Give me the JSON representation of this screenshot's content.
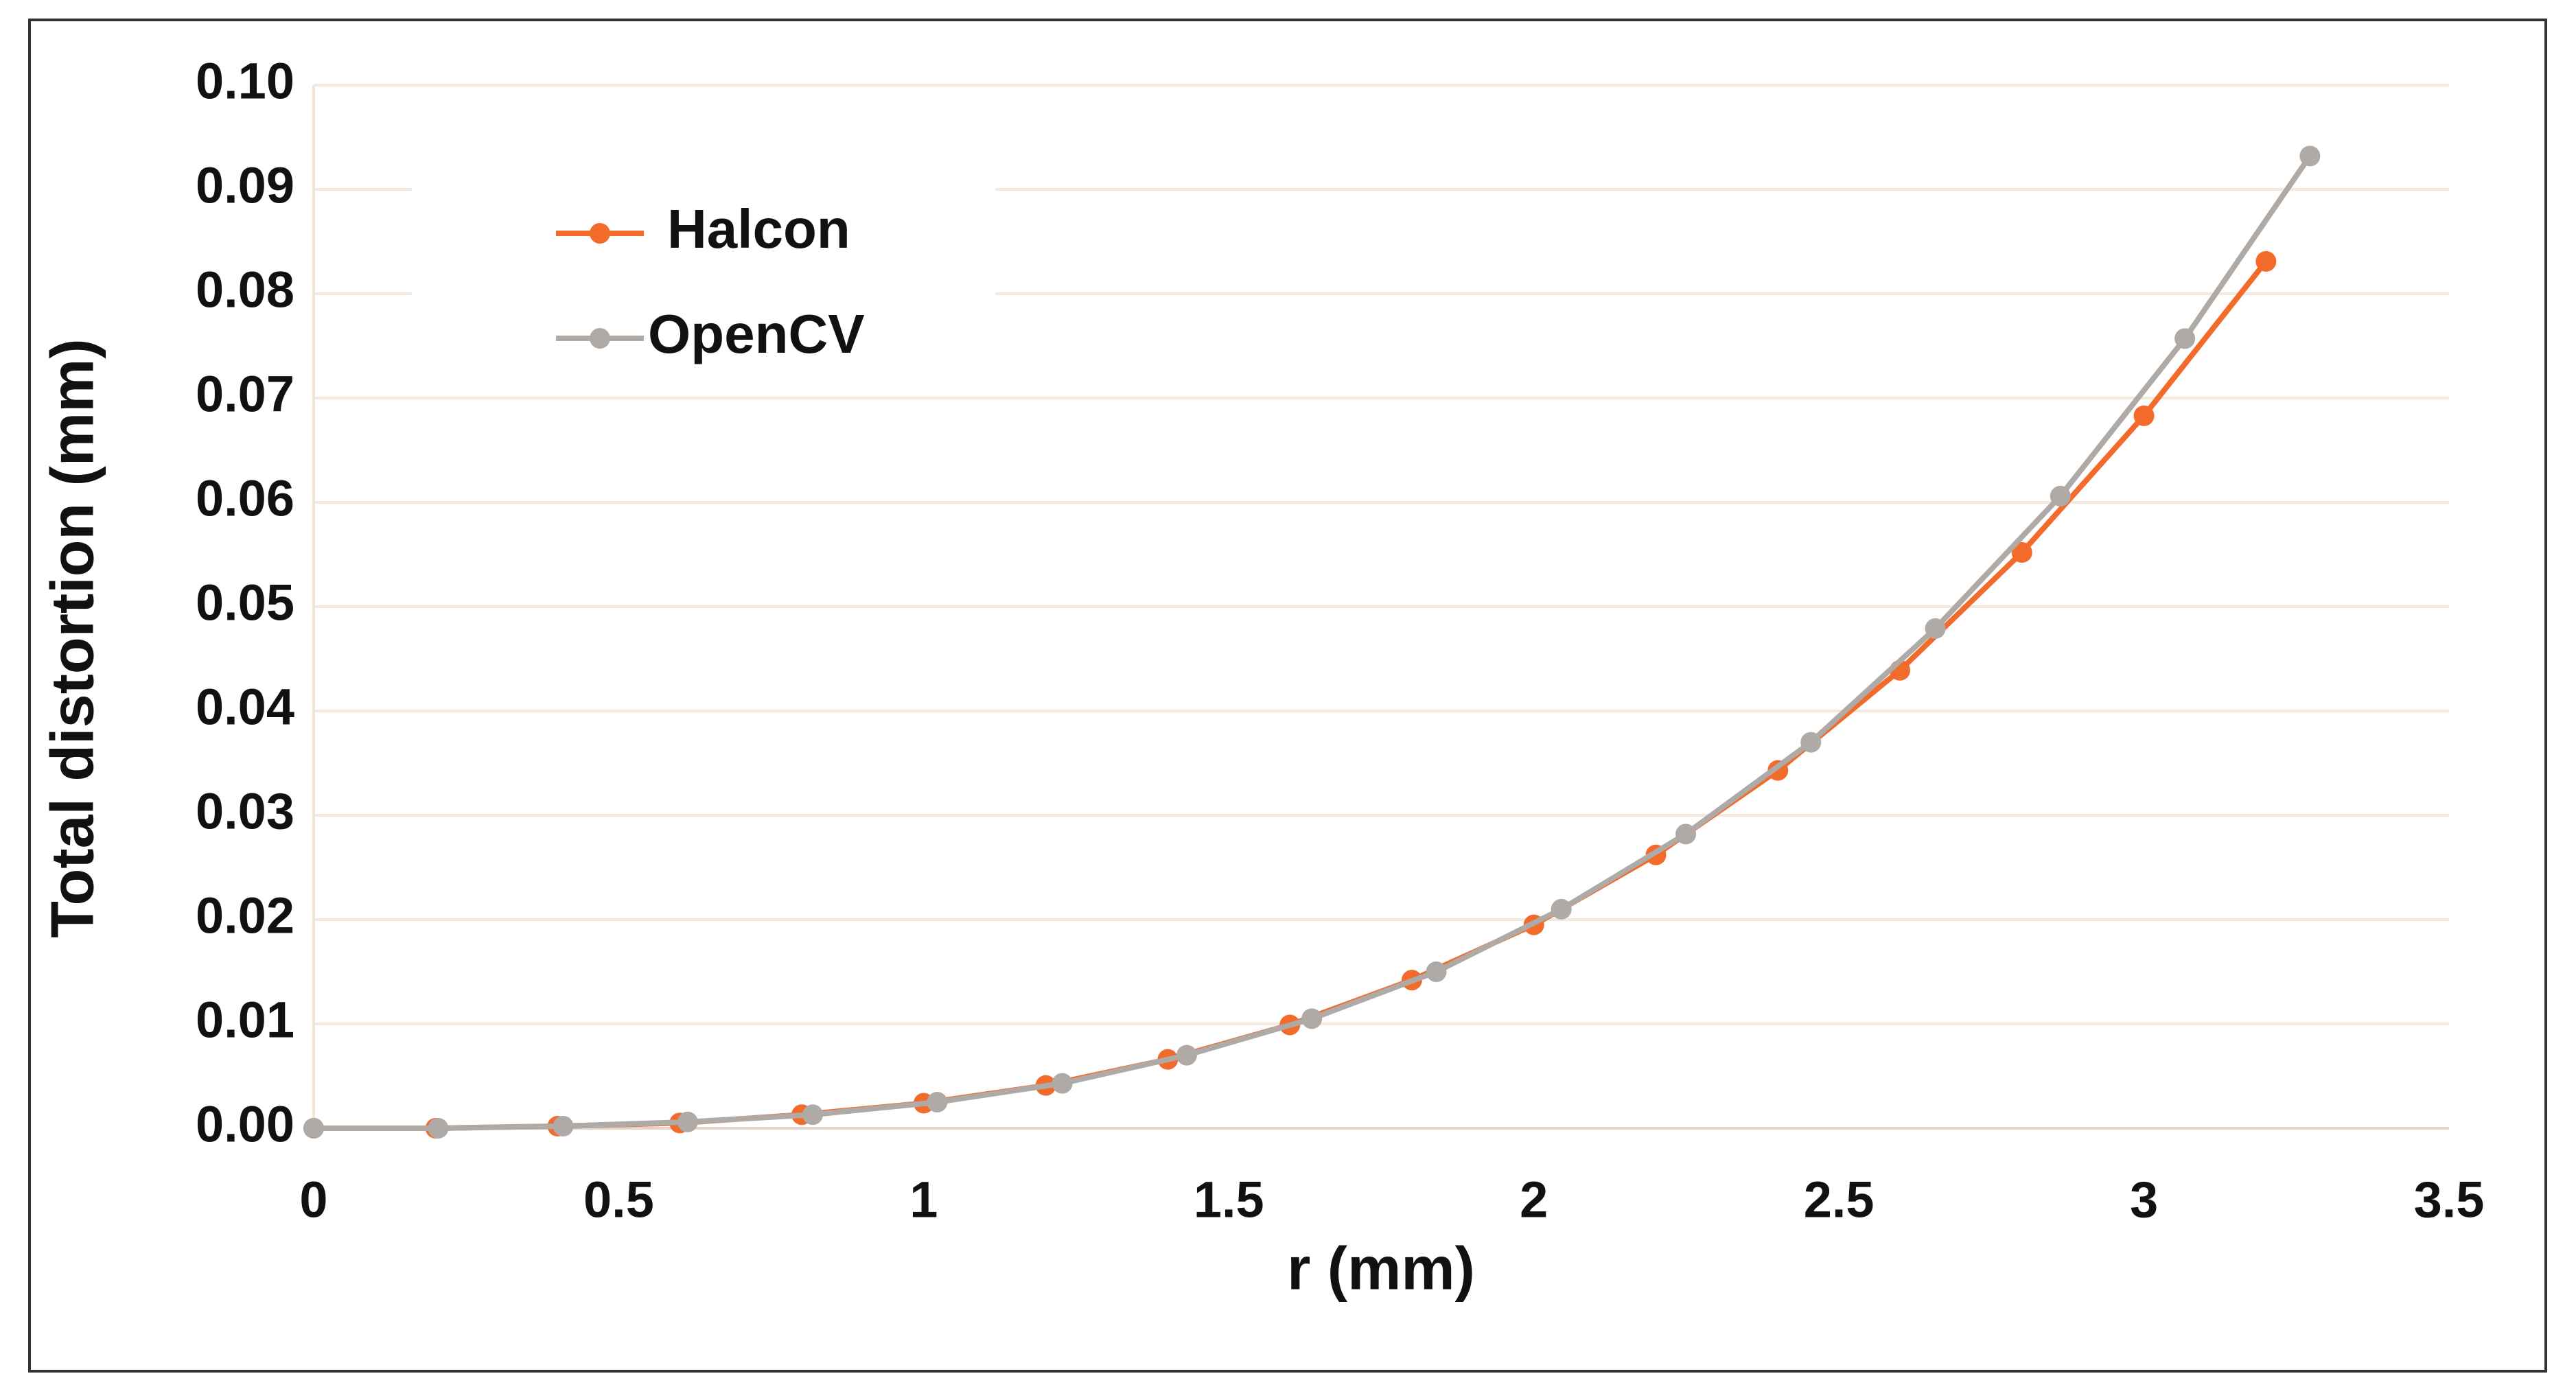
{
  "chart_data": {
    "type": "line",
    "xlabel": "r (mm)",
    "ylabel": "Total distortion (mm)",
    "xlim": [
      0,
      3.5
    ],
    "xticks": [
      0,
      0.5,
      1,
      1.5,
      2,
      2.5,
      3,
      3.5
    ],
    "ylim": [
      0,
      0.1
    ],
    "yticks": [
      {
        "value": 0,
        "label": "0.00"
      },
      {
        "value": 0.01,
        "label": "0.01"
      },
      {
        "value": 0.02,
        "label": "0.02"
      },
      {
        "value": 0.03,
        "label": "0.03"
      },
      {
        "value": 0.04,
        "label": "0.04"
      },
      {
        "value": 0.05,
        "label": "0.05"
      },
      {
        "value": 0.06,
        "label": "0.06"
      },
      {
        "value": 0.07,
        "label": "0.07"
      },
      {
        "value": 0.08,
        "label": "0.08"
      },
      {
        "value": 0.09,
        "label": "0.09"
      },
      {
        "value": 0.1,
        "label": "0.10"
      }
    ],
    "grid": true,
    "legend": "upper left",
    "series": [
      {
        "name": "Halcon",
        "color": "#f26b2a",
        "x": [
          0,
          0.2,
          0.4,
          0.6,
          0.8,
          1.0,
          1.2,
          1.4,
          1.6,
          1.8,
          2.0,
          2.2,
          2.4,
          2.6,
          2.8,
          3.0,
          3.2
        ],
        "values": [
          0,
          0,
          0.0002,
          0.0005,
          0.0013,
          0.0024,
          0.0041,
          0.0066,
          0.0099,
          0.0142,
          0.0195,
          0.0262,
          0.0343,
          0.0439,
          0.0552,
          0.0683,
          0.0831
        ]
      },
      {
        "name": "OpenCV",
        "color": "#b0aaa6",
        "x": [
          0,
          0.204,
          0.409,
          0.613,
          0.818,
          1.022,
          1.227,
          1.431,
          1.636,
          1.84,
          2.045,
          2.249,
          2.454,
          2.658,
          2.863,
          3.067,
          3.272
        ],
        "values": [
          0,
          0,
          0.0002,
          0.0006,
          0.0013,
          0.0025,
          0.0043,
          0.007,
          0.0105,
          0.015,
          0.021,
          0.0282,
          0.037,
          0.0479,
          0.0606,
          0.0757,
          0.0932
        ]
      }
    ]
  }
}
